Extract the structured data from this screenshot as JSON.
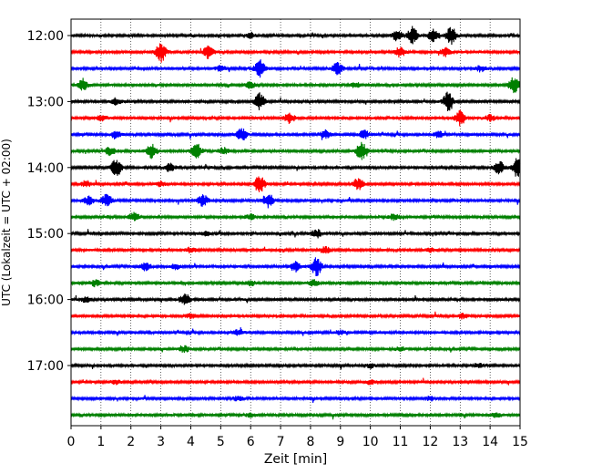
{
  "chart_data": {
    "type": "line",
    "title": "",
    "xlabel": "Zeit  [min]",
    "ylabel": "UTC (Lokalzeit = UTC + 02:00)",
    "xlim": [
      0,
      15
    ],
    "x_ticks": [
      0,
      1,
      2,
      3,
      4,
      5,
      6,
      7,
      8,
      9,
      10,
      11,
      12,
      13,
      14,
      15
    ],
    "y_tick_labels": [
      "12:00",
      "13:00",
      "14:00",
      "15:00",
      "16:00",
      "17:00"
    ],
    "grid": "vertical dotted",
    "legend": "none",
    "trace_colors": [
      "#000000",
      "#ff0000",
      "#0000ff",
      "#008000"
    ],
    "series": [
      {
        "start": "12:00",
        "events": [
          [
            11.4,
            0.9
          ],
          [
            12.1,
            0.6
          ],
          [
            12.7,
            0.9
          ],
          [
            10.9,
            0.5
          ],
          [
            6.0,
            0.3
          ]
        ]
      },
      {
        "start": "12:15",
        "events": [
          [
            3.0,
            1.0
          ],
          [
            4.6,
            0.7
          ],
          [
            11.0,
            0.5
          ],
          [
            12.5,
            0.4
          ]
        ]
      },
      {
        "start": "12:30",
        "events": [
          [
            6.3,
            0.9
          ],
          [
            8.9,
            0.6
          ],
          [
            13.7,
            0.3
          ],
          [
            5.0,
            0.25
          ]
        ]
      },
      {
        "start": "12:45",
        "events": [
          [
            0.4,
            0.6
          ],
          [
            14.8,
            0.8
          ],
          [
            6.0,
            0.3
          ],
          [
            9.5,
            0.25
          ]
        ]
      },
      {
        "start": "13:00",
        "events": [
          [
            6.3,
            0.8
          ],
          [
            12.6,
            0.9
          ],
          [
            1.5,
            0.3
          ]
        ]
      },
      {
        "start": "13:15",
        "events": [
          [
            7.3,
            0.5
          ],
          [
            13.0,
            0.8
          ],
          [
            14.0,
            0.3
          ],
          [
            1.0,
            0.3
          ]
        ]
      },
      {
        "start": "13:30",
        "events": [
          [
            1.5,
            0.4
          ],
          [
            5.7,
            0.6
          ],
          [
            8.5,
            0.4
          ],
          [
            9.8,
            0.4
          ],
          [
            12.3,
            0.3
          ]
        ]
      },
      {
        "start": "13:45",
        "events": [
          [
            1.3,
            0.4
          ],
          [
            2.7,
            0.7
          ],
          [
            4.2,
            0.7
          ],
          [
            9.7,
            0.9
          ],
          [
            5.1,
            0.3
          ]
        ]
      },
      {
        "start": "14:00",
        "events": [
          [
            1.5,
            1.0
          ],
          [
            3.3,
            0.4
          ],
          [
            14.3,
            0.6
          ],
          [
            14.9,
            0.9
          ]
        ]
      },
      {
        "start": "14:15",
        "events": [
          [
            6.3,
            0.9
          ],
          [
            9.6,
            0.6
          ],
          [
            0.5,
            0.3
          ],
          [
            3.0,
            0.25
          ]
        ]
      },
      {
        "start": "14:30",
        "events": [
          [
            1.2,
            0.7
          ],
          [
            4.4,
            0.6
          ],
          [
            6.6,
            0.7
          ],
          [
            0.6,
            0.4
          ]
        ]
      },
      {
        "start": "14:45",
        "events": [
          [
            2.1,
            0.4
          ],
          [
            10.8,
            0.3
          ],
          [
            6.0,
            0.25
          ]
        ]
      },
      {
        "start": "15:00",
        "events": [
          [
            8.2,
            0.4
          ],
          [
            4.5,
            0.2
          ]
        ]
      },
      {
        "start": "15:15",
        "events": [
          [
            4.0,
            0.25
          ],
          [
            8.5,
            0.3
          ],
          [
            12.0,
            0.2
          ]
        ]
      },
      {
        "start": "15:30",
        "events": [
          [
            2.5,
            0.4
          ],
          [
            8.2,
            0.9
          ],
          [
            7.5,
            0.5
          ],
          [
            3.5,
            0.25
          ]
        ]
      },
      {
        "start": "15:45",
        "events": [
          [
            0.8,
            0.3
          ],
          [
            6.0,
            0.25
          ],
          [
            8.1,
            0.3
          ]
        ]
      },
      {
        "start": "16:00",
        "events": [
          [
            3.8,
            0.6
          ],
          [
            0.5,
            0.25
          ]
        ]
      },
      {
        "start": "16:15",
        "events": [
          [
            4.0,
            0.2
          ],
          [
            13.1,
            0.25
          ]
        ]
      },
      {
        "start": "16:30",
        "events": [
          [
            5.6,
            0.3
          ],
          [
            9.0,
            0.2
          ]
        ]
      },
      {
        "start": "16:45",
        "events": [
          [
            3.8,
            0.3
          ],
          [
            11.0,
            0.2
          ]
        ]
      },
      {
        "start": "17:00",
        "events": [
          [
            10.0,
            0.2
          ],
          [
            13.6,
            0.2
          ]
        ]
      },
      {
        "start": "17:15",
        "events": [
          [
            1.5,
            0.2
          ],
          [
            10.0,
            0.2
          ]
        ]
      },
      {
        "start": "17:30",
        "events": [
          [
            5.6,
            0.25
          ],
          [
            12.0,
            0.2
          ]
        ]
      },
      {
        "start": "17:45",
        "events": [
          [
            6.0,
            0.2
          ],
          [
            14.2,
            0.2
          ]
        ]
      }
    ]
  }
}
